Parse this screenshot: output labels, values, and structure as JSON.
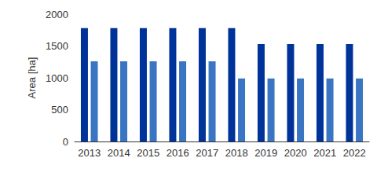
{
  "chart_data": {
    "type": "bar",
    "y_label": "Area [ha]",
    "categories": [
      "2013",
      "2014",
      "2015",
      "2016",
      "2017",
      "2018",
      "2019",
      "2020",
      "2021",
      "2022"
    ],
    "series": [
      {
        "color": "#003399",
        "values": [
          1780,
          1780,
          1780,
          1780,
          1780,
          1780,
          1530,
          1530,
          1530,
          1530
        ]
      },
      {
        "color": "#3a75c4",
        "values": [
          1260,
          1260,
          1260,
          1260,
          1260,
          990,
          990,
          990,
          990,
          990
        ]
      }
    ],
    "ylim": [
      0,
      2000
    ],
    "yticks": [
      0,
      500,
      1000,
      1500,
      2000
    ],
    "grid": false
  }
}
